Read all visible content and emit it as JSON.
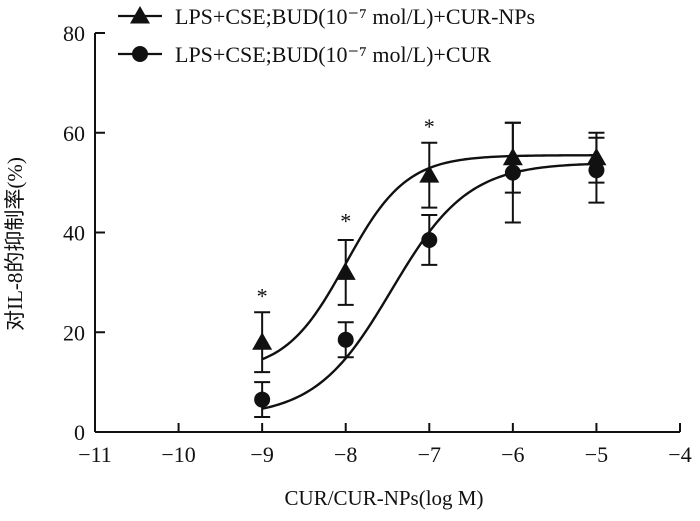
{
  "chart_data": {
    "type": "line",
    "title": "",
    "xlabel": "CUR/CUR-NPs(log M)",
    "ylabel": "对IL-8的抑制率(%)",
    "xlim": [
      -11,
      -4
    ],
    "ylim": [
      0,
      80
    ],
    "x_ticks": [
      -11,
      -10,
      -9,
      -8,
      -7,
      -6,
      -5,
      -4
    ],
    "x_tick_labels": [
      "−11",
      "−10",
      "−9",
      "−8",
      "−7",
      "−6",
      "−5",
      "−4"
    ],
    "y_ticks": [
      0,
      20,
      40,
      60,
      80
    ],
    "y_tick_labels": [
      "0",
      "20",
      "40",
      "60",
      "80"
    ],
    "grid": false,
    "legend_position": "top",
    "series": [
      {
        "name": "LPS+CSE;BUD(10⁻⁷ mol/L)+CUR-NPs",
        "marker": "triangle",
        "color": "#111111",
        "x": [
          -9,
          -8,
          -7,
          -6,
          -5
        ],
        "y": [
          18,
          32,
          51.5,
          55,
          55
        ],
        "error": [
          6,
          6.5,
          6.5,
          7,
          5
        ],
        "fit_curve": {
          "bottom": 12,
          "top": 55.5,
          "log_ec50": -8.0,
          "hill_slope": 1.2
        }
      },
      {
        "name": "LPS+CSE;BUD(10⁻⁷ mol/L)+CUR",
        "marker": "circle",
        "color": "#111111",
        "x": [
          -9,
          -8,
          -7,
          -6,
          -5
        ],
        "y": [
          6.5,
          18.5,
          38.5,
          52,
          52.5
        ],
        "error": [
          3.5,
          3.5,
          5,
          10,
          6.5
        ],
        "fit_curve": {
          "bottom": 3,
          "top": 54,
          "log_ec50": -7.45,
          "hill_slope": 0.95
        }
      }
    ],
    "annotations": [
      {
        "text": "*",
        "x": -9,
        "y": 27
      },
      {
        "text": "*",
        "x": -8,
        "y": 42
      },
      {
        "text": "*",
        "x": -7,
        "y": 61
      }
    ]
  }
}
